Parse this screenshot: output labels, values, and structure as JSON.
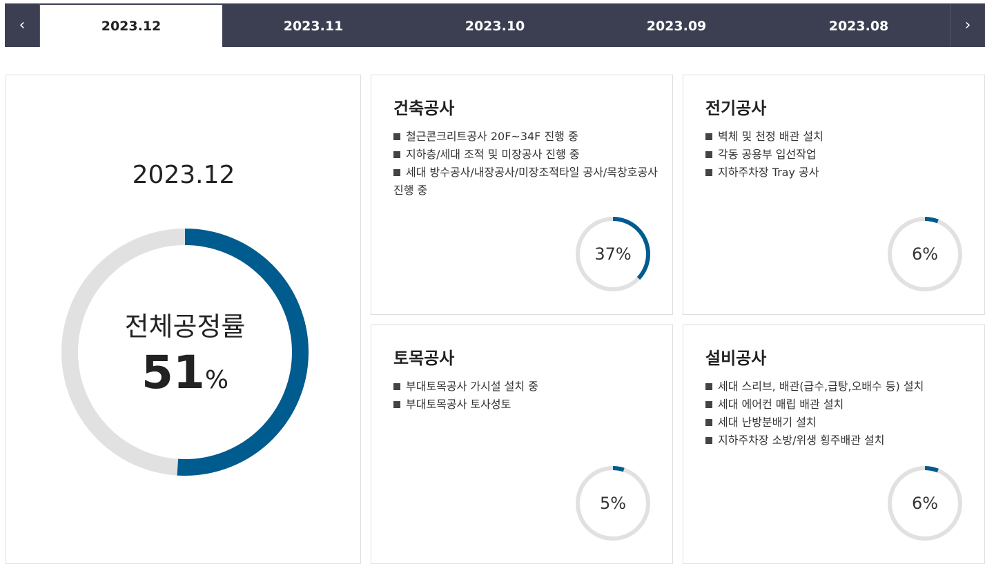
{
  "tabs": {
    "prev_icon": "‹",
    "next_icon": "›",
    "items": [
      {
        "label": "2023.12",
        "active": true
      },
      {
        "label": "2023.11",
        "active": false
      },
      {
        "label": "2023.10",
        "active": false
      },
      {
        "label": "2023.09",
        "active": false
      },
      {
        "label": "2023.08",
        "active": false
      }
    ]
  },
  "overall": {
    "date": "2023.12",
    "title": "전체공정률",
    "percent_value": "51",
    "percent_sign": "%",
    "progress": 0.51
  },
  "cards": [
    {
      "title": "건축공사",
      "items": [
        "철근콘크리트공사 20F~34F 진행 중",
        "지하층/세대 조적 및 미장공사 진행 중",
        "세대 방수공사/내장공사/미장조적타일 공사/목창호공사 진행  중"
      ],
      "percent_label": "37%",
      "progress": 0.37
    },
    {
      "title": "전기공사",
      "items": [
        "벽체 및 천정 배관 설치",
        "각동 공용부 입선작업",
        "지하주차장 Tray 공사"
      ],
      "percent_label": "6%",
      "progress": 0.06
    },
    {
      "title": "토목공사",
      "items": [
        "부대토목공사 가시설 설치 중",
        "부대토목공사 토사성토"
      ],
      "percent_label": "5%",
      "progress": 0.05
    },
    {
      "title": "설비공사",
      "items": [
        "세대 스리브, 배관(급수,급탕,오배수 등) 설치",
        "세대 에어컨 매립 배관 설치",
        "세대 난방분배기 설치",
        "지하주차장 소방/위생 횡주배관 설치"
      ],
      "percent_label": "6%",
      "progress": 0.06
    }
  ],
  "colors": {
    "accent": "#005b8f",
    "track": "#e1e1e1",
    "tabbar": "#3b3f51"
  }
}
